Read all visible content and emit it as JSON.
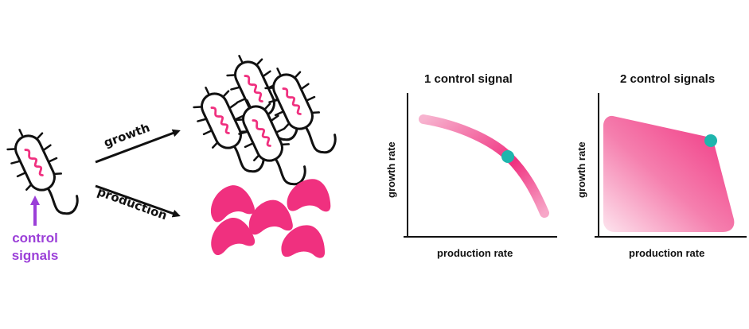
{
  "left": {
    "signal_label_line1": "control",
    "signal_label_line2": "signals",
    "growth_label": "growth",
    "production_label": "production"
  },
  "panels": [
    {
      "title": "1 control signal",
      "xlabel": "production rate",
      "ylabel": "growth rate"
    },
    {
      "title": "2 control signals",
      "xlabel": "production rate",
      "ylabel": "growth rate"
    }
  ],
  "colors": {
    "pink": "#f0307f",
    "purple": "#9b3fd8",
    "teal": "#1fb5ad",
    "ink": "#111111"
  },
  "icons": [
    "bacterium-icon",
    "product-blob-icon",
    "arrow-icon",
    "marker-dot-icon"
  ]
}
